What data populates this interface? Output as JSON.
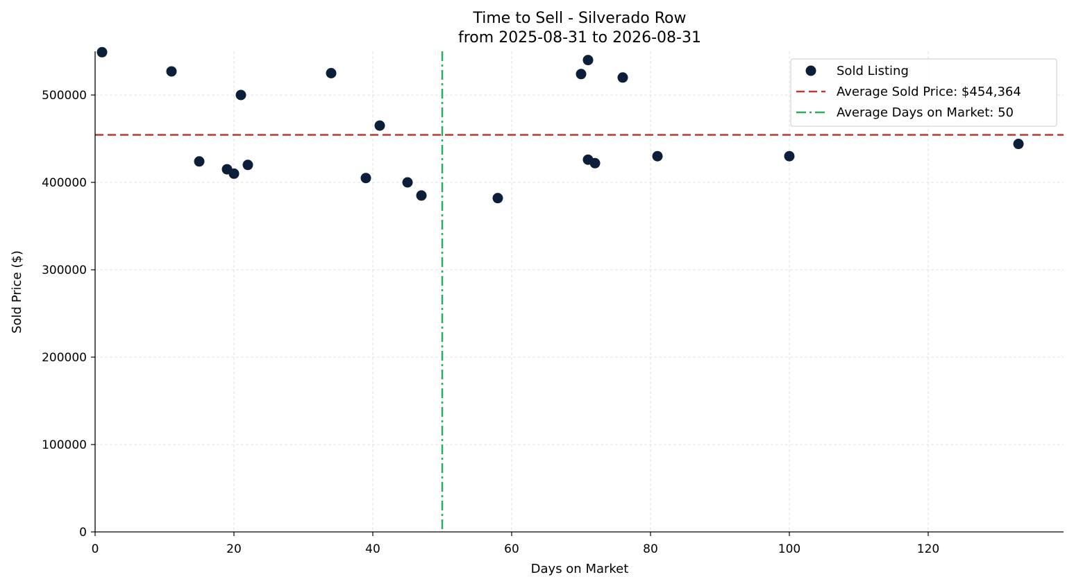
{
  "chart_data": {
    "type": "scatter",
    "title": "Time to Sell - Silverado Row",
    "subtitle": "from 2025-08-31 to 2026-08-31",
    "xlabel": "Days on Market",
    "ylabel": "Sold Price ($)",
    "xlim": [
      0,
      139.5
    ],
    "ylim": [
      0,
      550000
    ],
    "x_ticks": [
      0,
      20,
      40,
      60,
      80,
      100,
      120
    ],
    "y_ticks": [
      0,
      100000,
      200000,
      300000,
      400000,
      500000
    ],
    "grid": true,
    "legend_position": "top-right",
    "series": [
      {
        "name": "Sold Listing",
        "color": "#0b1f3a",
        "points": [
          {
            "x": 1,
            "y": 549000
          },
          {
            "x": 11,
            "y": 527000
          },
          {
            "x": 15,
            "y": 424000
          },
          {
            "x": 19,
            "y": 415000
          },
          {
            "x": 20,
            "y": 410000
          },
          {
            "x": 21,
            "y": 500000
          },
          {
            "x": 22,
            "y": 420000
          },
          {
            "x": 34,
            "y": 525000
          },
          {
            "x": 39,
            "y": 405000
          },
          {
            "x": 41,
            "y": 465000
          },
          {
            "x": 45,
            "y": 400000
          },
          {
            "x": 47,
            "y": 385000
          },
          {
            "x": 58,
            "y": 382000
          },
          {
            "x": 70,
            "y": 524000
          },
          {
            "x": 71,
            "y": 540000
          },
          {
            "x": 71,
            "y": 426000
          },
          {
            "x": 72,
            "y": 422000
          },
          {
            "x": 76,
            "y": 520000
          },
          {
            "x": 81,
            "y": 430000
          },
          {
            "x": 100,
            "y": 430000
          },
          {
            "x": 133,
            "y": 444000
          }
        ]
      }
    ],
    "reference_lines": [
      {
        "name": "Average Sold Price: $454,364",
        "orientation": "horizontal",
        "value": 454364,
        "color": "#c0392b",
        "style": "dashed"
      },
      {
        "name": "Average Days on Market: 50",
        "orientation": "vertical",
        "value": 50,
        "color": "#27ae60",
        "style": "dashdot"
      }
    ]
  }
}
